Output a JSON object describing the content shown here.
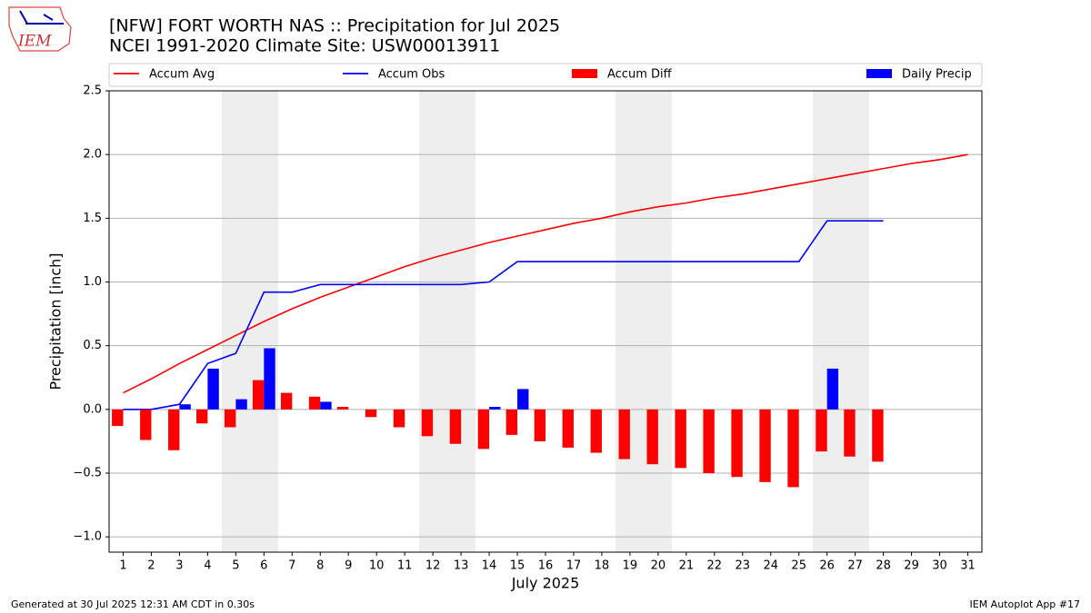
{
  "logo_text": "IEM",
  "chart_data": {
    "type": "bar",
    "title": "[NFW] FORT WORTH NAS :: Precipitation for Jul 2025",
    "subtitle": "NCEI 1991-2020 Climate Site: USW00013911",
    "x_label": "July 2025",
    "y_label": "Precipitation [inch]",
    "footer_left": "Generated at 30 Jul 2025 12:31 AM CDT in 0.30s",
    "footer_right": "IEM Autoplot App #17",
    "x": [
      1,
      2,
      3,
      4,
      5,
      6,
      7,
      8,
      9,
      10,
      11,
      12,
      13,
      14,
      15,
      16,
      17,
      18,
      19,
      20,
      21,
      22,
      23,
      24,
      25,
      26,
      27,
      28,
      29,
      30,
      31
    ],
    "xlim": [
      0.5,
      31.5
    ],
    "xticks": [
      1,
      2,
      3,
      4,
      5,
      6,
      7,
      8,
      9,
      10,
      11,
      12,
      13,
      14,
      15,
      16,
      17,
      18,
      19,
      20,
      21,
      22,
      23,
      24,
      25,
      26,
      27,
      28,
      29,
      30,
      31
    ],
    "ylim": [
      -1.12,
      2.5
    ],
    "yticks": [
      {
        "value": -1,
        "label": "−1.0"
      },
      {
        "value": -0.5,
        "label": "−0.5"
      },
      {
        "value": 0,
        "label": "0.0"
      },
      {
        "value": 0.5,
        "label": "0.5"
      },
      {
        "value": 1,
        "label": "1.0"
      },
      {
        "value": 1.5,
        "label": "1.5"
      },
      {
        "value": 2,
        "label": "2.0"
      },
      {
        "value": 2.5,
        "label": "2.5"
      }
    ],
    "grid": true,
    "series": [
      {
        "name": "Accum Avg",
        "type": "line",
        "color": "#ff0000",
        "values": [
          0.13,
          0.24,
          0.36,
          0.47,
          0.58,
          0.69,
          0.79,
          0.88,
          0.96,
          1.04,
          1.12,
          1.19,
          1.25,
          1.31,
          1.36,
          1.41,
          1.46,
          1.5,
          1.55,
          1.59,
          1.62,
          1.66,
          1.69,
          1.73,
          1.77,
          1.81,
          1.85,
          1.89,
          1.93,
          1.96,
          2.0
        ]
      },
      {
        "name": "Accum Obs",
        "type": "line",
        "color": "#0000ff",
        "values": [
          0,
          0,
          0.04,
          0.36,
          0.44,
          0.92,
          0.92,
          0.98,
          0.98,
          0.98,
          0.98,
          0.98,
          0.98,
          1.0,
          1.16,
          1.16,
          1.16,
          1.16,
          1.16,
          1.16,
          1.16,
          1.16,
          1.16,
          1.16,
          1.16,
          1.48,
          1.48,
          1.48,
          null,
          null,
          null
        ]
      },
      {
        "name": "Accum Diff",
        "type": "bar",
        "color": "#ff0000",
        "values": [
          -0.13,
          -0.24,
          -0.32,
          -0.11,
          -0.14,
          0.23,
          0.13,
          0.1,
          0.02,
          -0.06,
          -0.14,
          -0.21,
          -0.27,
          -0.31,
          -0.2,
          -0.25,
          -0.3,
          -0.34,
          -0.39,
          -0.43,
          -0.46,
          -0.5,
          -0.53,
          -0.57,
          -0.61,
          -0.33,
          -0.37,
          -0.41,
          null,
          null,
          null
        ]
      },
      {
        "name": "Daily Precip",
        "type": "bar",
        "color": "#0000ff",
        "values": [
          0,
          0,
          0.04,
          0.32,
          0.08,
          0.48,
          0,
          0.06,
          0,
          0,
          0,
          0,
          0,
          0.02,
          0.16,
          0,
          0,
          0,
          0,
          0,
          0,
          0,
          0,
          0,
          0,
          0.32,
          0,
          0,
          null,
          null,
          null
        ]
      }
    ]
  }
}
